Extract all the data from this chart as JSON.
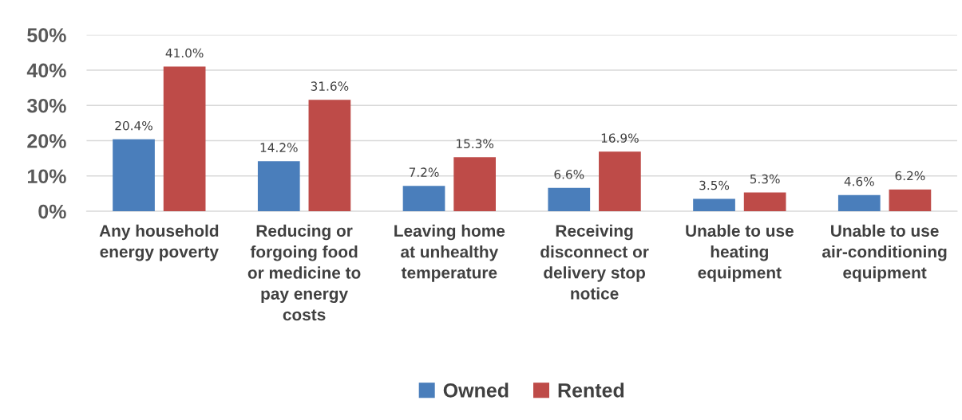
{
  "chart_data": {
    "type": "bar",
    "categories": [
      "Any household\nenergy poverty",
      "Reducing or\nforgoing food\nor medicine to\npay energy\ncosts",
      "Leaving home\nat unhealthy\ntemperature",
      "Receiving\ndisconnect or\ndelivery stop\nnotice",
      "Unable to use\nheating\nequipment",
      "Unable to use\nair-conditioning\nequipment"
    ],
    "series": [
      {
        "name": "Owned",
        "color": "#4a7ebb",
        "values": [
          20.4,
          14.2,
          7.2,
          6.6,
          3.5,
          4.6
        ],
        "value_labels": [
          "20.4%",
          "14.2%",
          "7.2%",
          "6.6%",
          "3.5%",
          "4.6%"
        ]
      },
      {
        "name": "Rented",
        "color": "#be4b48",
        "values": [
          41.0,
          31.6,
          15.3,
          16.9,
          5.3,
          6.2
        ],
        "value_labels": [
          "41.0%",
          "31.6%",
          "15.3%",
          "16.9%",
          "5.3%",
          "6.2%"
        ]
      }
    ],
    "ylim": [
      0,
      50
    ],
    "yticks": [
      {
        "value": 0,
        "label": "0%"
      },
      {
        "value": 10,
        "label": "10%"
      },
      {
        "value": 20,
        "label": "20%"
      },
      {
        "value": 30,
        "label": "30%"
      },
      {
        "value": 40,
        "label": "40%"
      },
      {
        "value": 50,
        "label": "50%"
      }
    ],
    "grid": "y",
    "legend": "bottom"
  }
}
